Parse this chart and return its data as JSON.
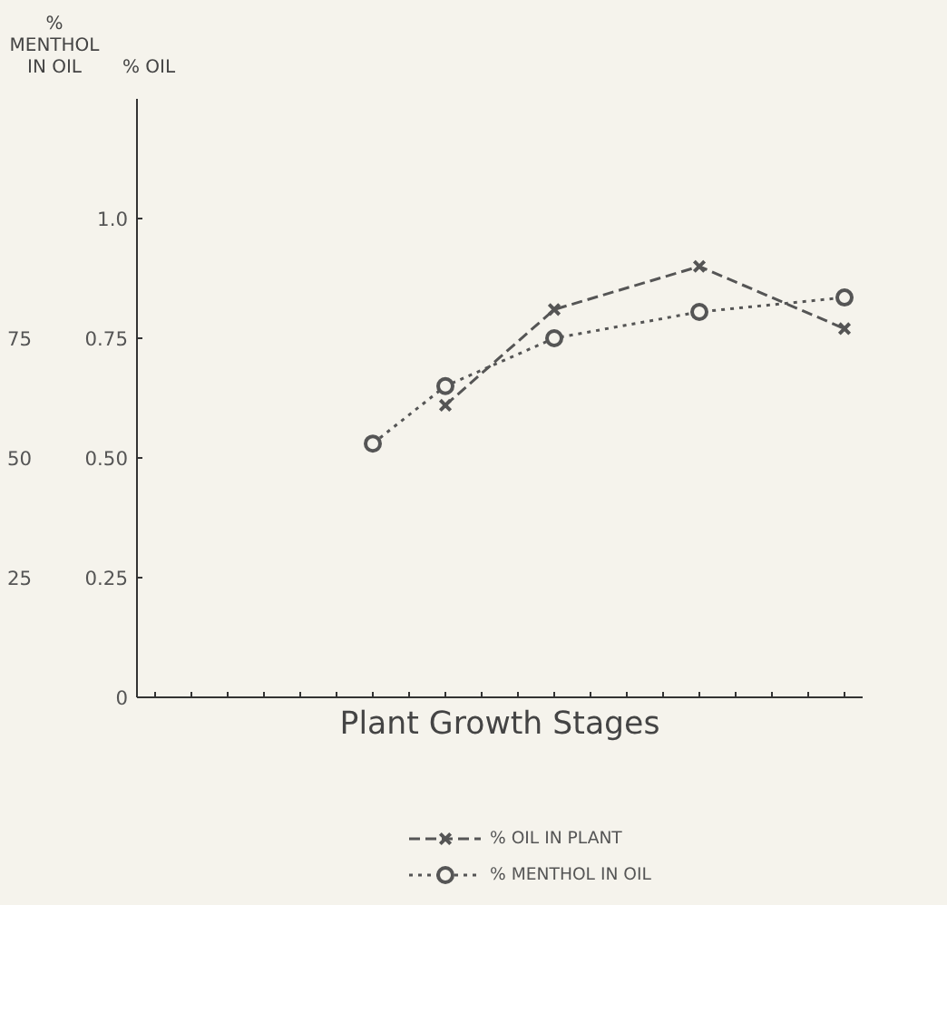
{
  "chart_data": {
    "type": "line",
    "xlabel": "Plant Growth Stages",
    "ylabel": "% OIL",
    "y2label": "% MENTHOL IN OIL",
    "categories": [
      null,
      null,
      null,
      null,
      null,
      null,
      null,
      null,
      null,
      null,
      null,
      null,
      null,
      null,
      null,
      null,
      null,
      null,
      null,
      null
    ],
    "ylim": [
      0,
      1.25
    ],
    "yticks": [
      0,
      {
        "value": 0.25,
        "label": "0.25"
      },
      {
        "value": 0.5,
        "label": "0.50"
      },
      {
        "value": 0.75,
        "label": "0.75"
      },
      {
        "value": 1.0,
        "label": "1.0"
      }
    ],
    "y2lim": [
      0,
      125
    ],
    "y2ticks": [
      25,
      50,
      75
    ],
    "tick_labels": "y",
    "legend": "bottom",
    "series": [
      {
        "name": "% OIL IN PLANT",
        "color": "#555555",
        "marker": "cross",
        "line_style": "dashed",
        "values": [
          null,
          null,
          null,
          null,
          null,
          null,
          null,
          null,
          0.61,
          null,
          null,
          0.81,
          null,
          null,
          null,
          0.9,
          null,
          null,
          null,
          0.77
        ]
      },
      {
        "name": "% MENTHOL IN OIL",
        "color": "#555555",
        "marker": "circle",
        "line_style": "dotted",
        "axis": "y2",
        "values": [
          null,
          null,
          null,
          null,
          null,
          null,
          53,
          null,
          65,
          null,
          null,
          75,
          null,
          null,
          null,
          80.5,
          null,
          null,
          null,
          83.5
        ]
      }
    ]
  }
}
